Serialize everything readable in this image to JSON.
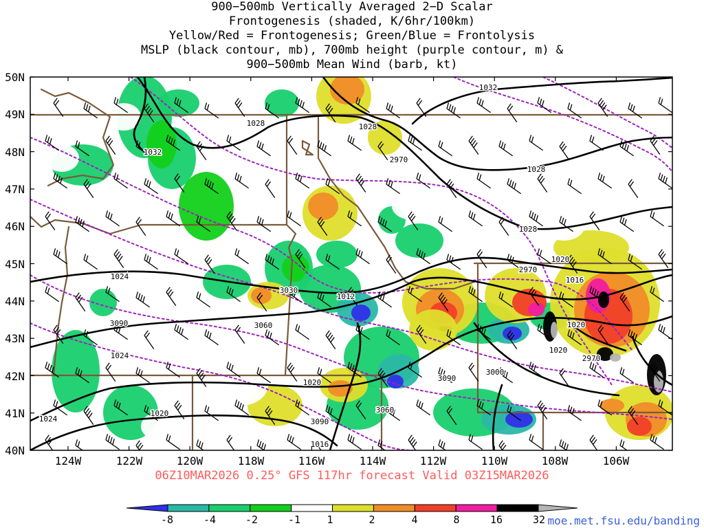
{
  "title_lines": [
    "900−500mb Vertically Averaged 2−D Scalar",
    "Frontogenesis (shaded, K/6hr/100km)",
    "Yellow/Red = Frontogenesis;  Green/Blue = Frontolysis",
    "MSLP (black contour, mb), 700mb height (purple contour, m) &",
    "900−500mb Mean Wind (barb, kt)"
  ],
  "lat_labels": [
    "50N",
    "49N",
    "48N",
    "47N",
    "46N",
    "45N",
    "44N",
    "43N",
    "42N",
    "41N",
    "40N"
  ],
  "lon_labels": [
    "124W",
    "122W",
    "120W",
    "118W",
    "116W",
    "114W",
    "112W",
    "110W",
    "108W",
    "106W"
  ],
  "run_info": "06Z10MAR2026 0.25° GFS 117hr forecast Valid 03Z15MAR2026",
  "colors": {
    "run_info": "#ff5a5a",
    "credit": "#3a5fdc",
    "mslp": "#000000",
    "height": "#a020c0",
    "border": "#7a5a3a",
    "barb": "#000000"
  },
  "colorbar": {
    "tick_labels": [
      "-8",
      "-4",
      "-2",
      "-1",
      "1",
      "2",
      "4",
      "8",
      "16",
      "32"
    ],
    "bin_colors": [
      "#3030e8",
      "#2ab8a6",
      "#19cf6e",
      "#12d01a",
      "#ffffff",
      "#dede2c",
      "#f08c28",
      "#f04028",
      "#f01ea0",
      "#000000",
      "#b4b4b4"
    ]
  },
  "mslp_labels": [
    "1032",
    "1028",
    "1028",
    "1032",
    "1028",
    "1028",
    "1024",
    "1020",
    "1016",
    "1012",
    "1020",
    "1020",
    "1024",
    "1020",
    "1016",
    "1020",
    "1024"
  ],
  "height_labels": [
    "2970",
    "2970",
    "2970",
    "3000",
    "3030",
    "3060",
    "3060",
    "3090",
    "3090",
    "3090"
  ],
  "credit": "moe.met.fsu.edu/banding"
}
